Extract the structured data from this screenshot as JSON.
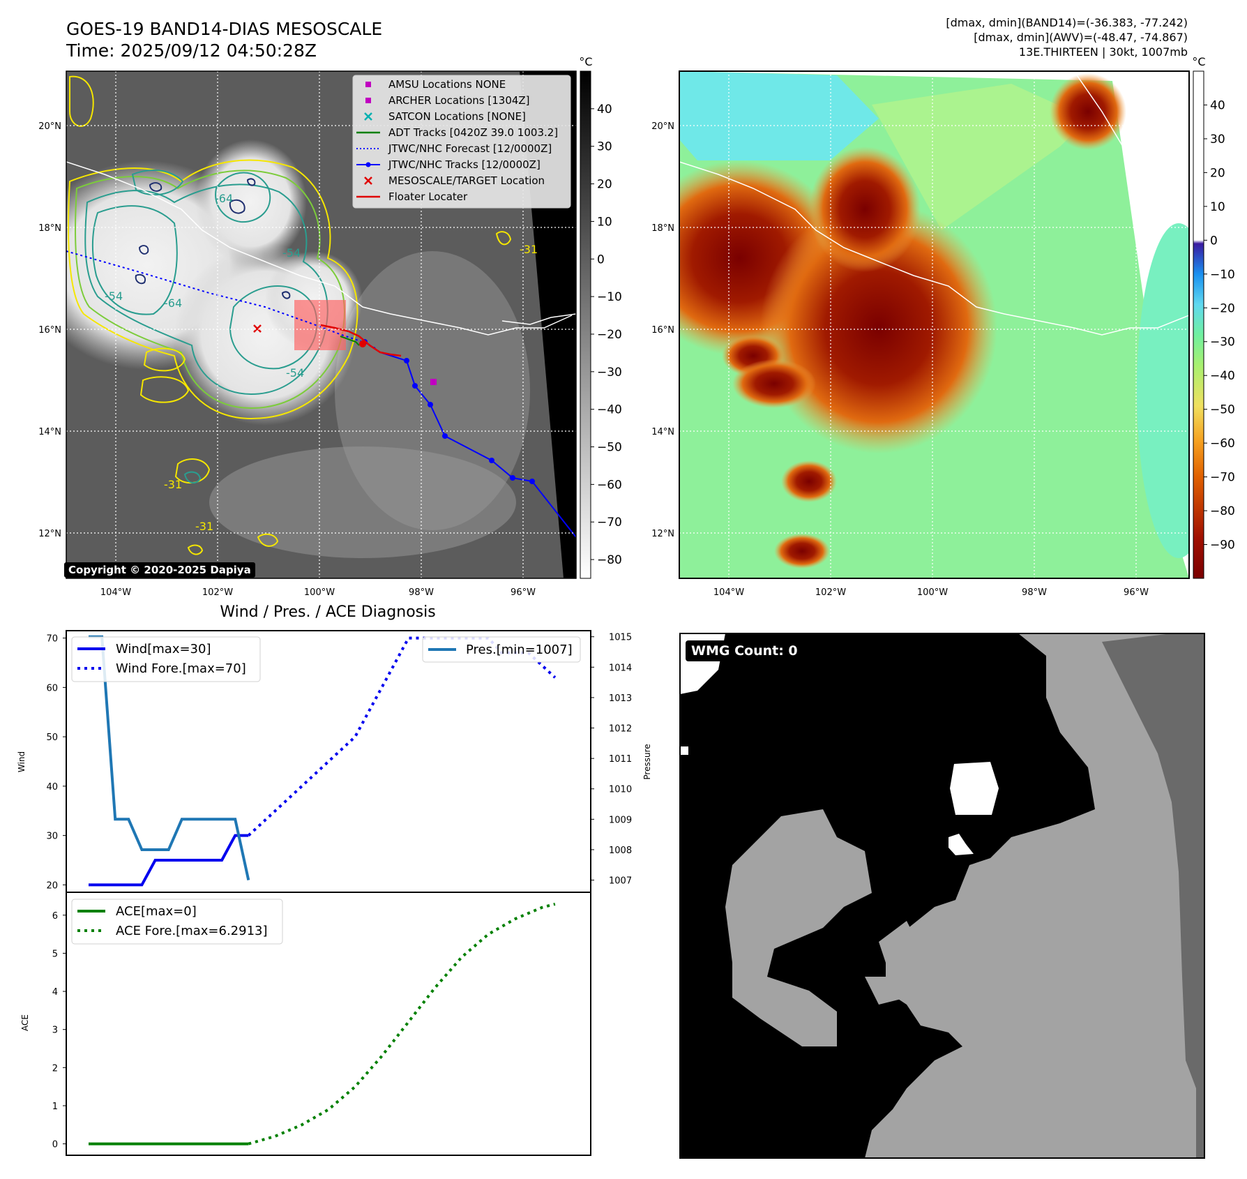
{
  "header": {
    "title_line1": "GOES-19 BAND14-DIAS MESOSCALE",
    "title_line2": "Time: 2025/09/12 04:50:28Z",
    "right_line1": "[dmax, dmin](BAND14)=(-36.383, -77.242)",
    "right_line2": "[dmax, dmin](AWV)=(-48.47, -74.867)",
    "right_line3": "13E.THIRTEEN | 30kt, 1007mb"
  },
  "map_axes": {
    "lon_ticks": [
      "104°W",
      "102°W",
      "100°W",
      "98°W",
      "96°W"
    ],
    "lon_values": [
      -104,
      -102,
      -100,
      -98,
      -96
    ],
    "lat_ticks": [
      "20°N",
      "18°N",
      "16°N",
      "14°N",
      "12°N"
    ],
    "lat_values": [
      20,
      18,
      16,
      14,
      12
    ],
    "lon_range": [
      -105,
      -95
    ],
    "lat_range": [
      11.1,
      21.1
    ]
  },
  "legend": {
    "items": [
      {
        "label": "AMSU Locations NONE",
        "marker": "square",
        "color": "#c000c0"
      },
      {
        "label": "ARCHER Locations [1304Z]",
        "marker": "square",
        "color": "#c000c0"
      },
      {
        "label": "SATCON Locations [NONE]",
        "marker": "x",
        "color": "#00b0b0"
      },
      {
        "label": "ADT Tracks [0420Z 39.0 1003.2]",
        "marker": "line",
        "color": "#008000"
      },
      {
        "label": "JTWC/NHC Forecast [12/0000Z]",
        "marker": "dotted",
        "color": "#0000ff"
      },
      {
        "label": "JTWC/NHC Tracks [12/0000Z]",
        "marker": "line-dot",
        "color": "#0000ff"
      },
      {
        "label": "MESOSCALE/TARGET Location",
        "marker": "x",
        "color": "#e00000"
      },
      {
        "label": "Floater Locater",
        "marker": "line",
        "color": "#e00000"
      }
    ]
  },
  "contour_labels": [
    "-54",
    "-54",
    "-54",
    "-64",
    "-64",
    "-31",
    "-31",
    "-31"
  ],
  "colorbar_gray": {
    "unit": "°C",
    "ticks": [
      "40",
      "30",
      "20",
      "10",
      "0",
      "−10",
      "−20",
      "−30",
      "−40",
      "−50",
      "−60",
      "−70",
      "−80"
    ],
    "range": [
      -85,
      50
    ]
  },
  "colorbar_awv": {
    "unit": "°C",
    "ticks": [
      "40",
      "30",
      "20",
      "10",
      "0",
      "−10",
      "−20",
      "−30",
      "−40",
      "−50",
      "−60",
      "−70",
      "−80",
      "−90"
    ],
    "range": [
      -100,
      50
    ]
  },
  "copyright": "Copyright © 2020-2025 Dapiya",
  "wmg_label": "WMG Count: 0",
  "colors": {
    "track": "#0000ff",
    "wind": "#0000ee",
    "pressure": "#1f77b4",
    "ace": "#008000",
    "contour_yellow": "#f5e600",
    "contour_green": "#7ccc3a",
    "contour_teal": "#2a9d8f",
    "contour_navy": "#203070"
  },
  "chart_data": [
    {
      "type": "line",
      "title": "Wind / Pres. / ACE Diagnosis",
      "ylabel": "Wind",
      "ylabel_right": "Pressure",
      "ylim": [
        18.5,
        71.5
      ],
      "ylim_right": [
        1006.6,
        1015.2
      ],
      "yticks": [
        "20",
        "30",
        "40",
        "50",
        "60",
        "70"
      ],
      "yticks_right": [
        "1007",
        "1008",
        "1009",
        "1010",
        "1011",
        "1012",
        "1013",
        "1014",
        "1015"
      ],
      "legend_left": [
        "Wind[max=30]",
        "Wind Fore.[max=70]"
      ],
      "legend_right": [
        "Pres.[min=1007]"
      ],
      "series": [
        {
          "name": "Wind[max=30]",
          "x": [
            0,
            1,
            2,
            3,
            4,
            5,
            6,
            7,
            8,
            9,
            10,
            11,
            12
          ],
          "values": [
            20,
            20,
            20,
            20,
            20,
            25,
            25,
            25,
            25,
            25,
            25,
            30,
            30
          ],
          "style": "solid"
        },
        {
          "name": "Wind Fore.[max=70]",
          "x": [
            12,
            14,
            16,
            18,
            20,
            22,
            24,
            25,
            26,
            28,
            30,
            31,
            33,
            35
          ],
          "values": [
            30,
            35,
            40,
            45,
            50,
            60,
            70,
            70,
            70,
            70,
            70,
            67,
            67,
            62
          ],
          "style": "dotted"
        },
        {
          "name": "Pres.[min=1007]",
          "x": [
            0,
            1,
            2,
            3,
            4,
            5,
            6,
            7,
            8,
            9,
            10,
            11,
            12
          ],
          "values": [
            1015,
            1015,
            1009,
            1009,
            1008,
            1008,
            1008,
            1009,
            1009,
            1009,
            1009,
            1009,
            1007
          ],
          "style": "solid"
        }
      ]
    },
    {
      "type": "line",
      "ylabel": "ACE",
      "ylim": [
        -0.3,
        6.6
      ],
      "yticks": [
        "0",
        "1",
        "2",
        "3",
        "4",
        "5",
        "6"
      ],
      "legend": [
        "ACE[max=0]",
        "ACE Fore.[max=6.2913]"
      ],
      "series": [
        {
          "name": "ACE[max=0]",
          "x": [
            0,
            12
          ],
          "values": [
            0,
            0
          ],
          "style": "solid"
        },
        {
          "name": "ACE Fore.[max=6.2913]",
          "x": [
            12,
            14,
            16,
            18,
            20,
            22,
            24,
            26,
            28,
            30,
            32,
            34,
            35
          ],
          "values": [
            0,
            0.2,
            0.5,
            0.9,
            1.5,
            2.3,
            3.2,
            4.1,
            4.9,
            5.5,
            5.9,
            6.2,
            6.29
          ],
          "style": "dotted"
        }
      ]
    }
  ]
}
